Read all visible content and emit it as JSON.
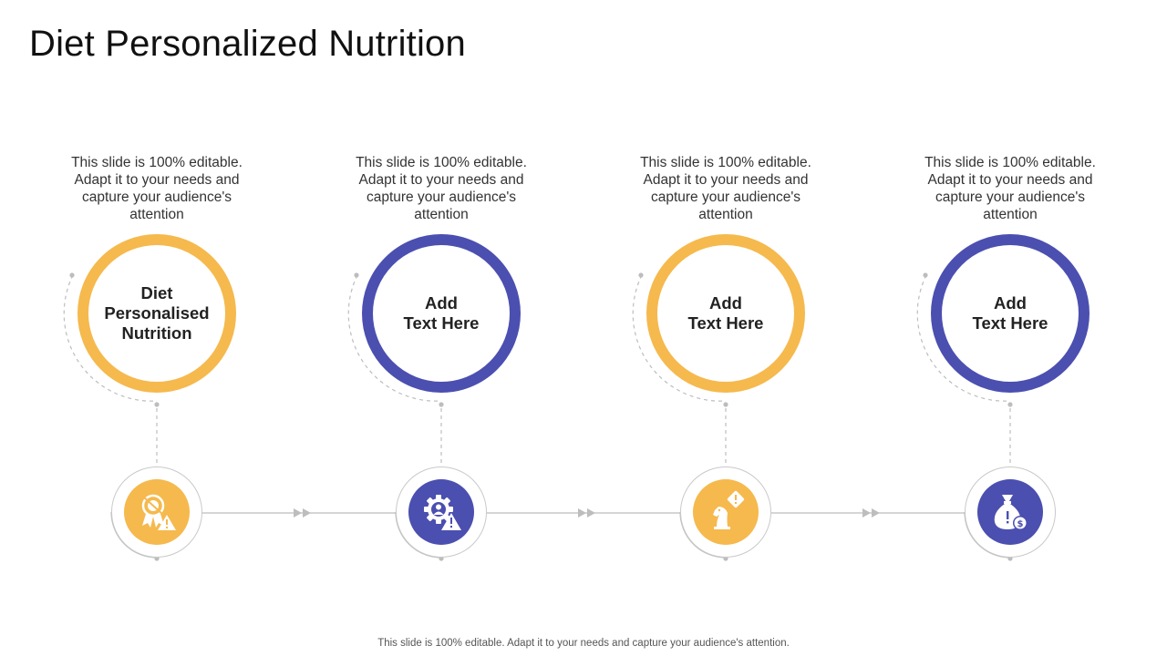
{
  "title": "Diet Personalized Nutrition",
  "columns": [
    {
      "description": "This slide is 100% editable. Adapt it to your needs and capture your audience's attention",
      "label": "Diet\nPersonalised\nNutrition",
      "color": "#F5B94D",
      "icon": "award-ribbon-warning-icon"
    },
    {
      "description": "This slide is 100% editable. Adapt it to your needs and capture your audience's attention",
      "label": "Add\nText Here",
      "color": "#4B4FB0",
      "icon": "gear-user-warning-icon"
    },
    {
      "description": "This slide is 100% editable. Adapt it to your needs and capture your audience's attention",
      "label": "Add\nText Here",
      "color": "#F5B94D",
      "icon": "chess-knight-warning-icon"
    },
    {
      "description": "This slide is 100% editable. Adapt it to your needs and capture your audience's attention",
      "label": "Add\nText Here",
      "color": "#4B4FB0",
      "icon": "money-bag-warning-icon"
    }
  ],
  "footer": "This slide is 100% editable. Adapt it to your needs and capture your audience's attention."
}
